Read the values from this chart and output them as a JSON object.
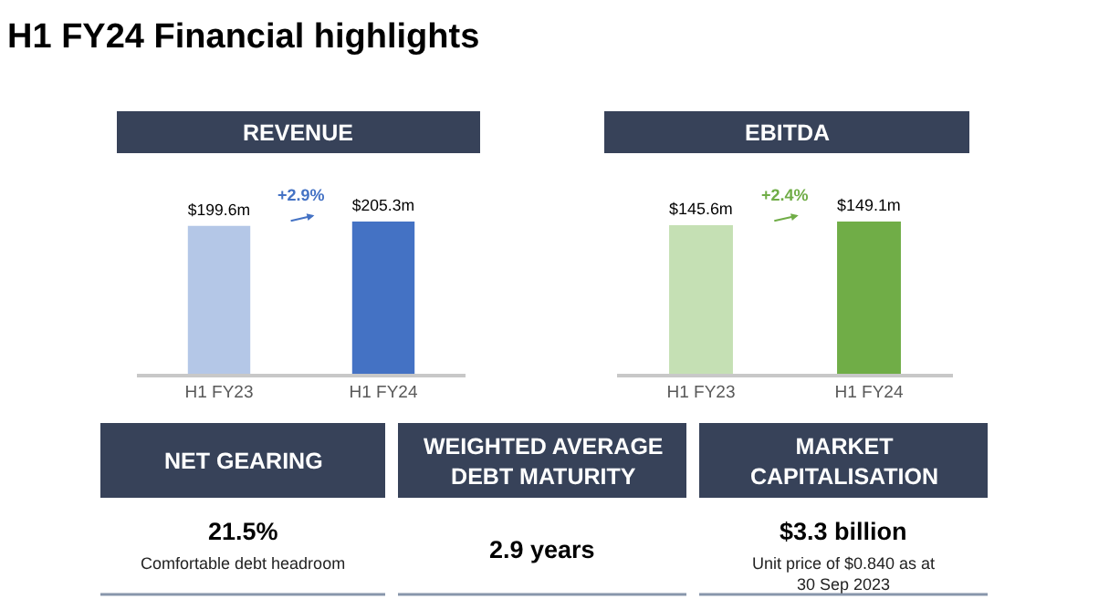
{
  "chart_data": [
    {
      "type": "other",
      "title": "H1 FY24 Financial highlights"
    },
    {
      "type": "bar",
      "title": "REVENUE",
      "categories": [
        "H1 FY23",
        "H1 FY24"
      ],
      "values": [
        199.6,
        205.3
      ],
      "colors": [
        "#b4c7e7",
        "#4472c4"
      ],
      "value_labels": [
        "$199.6m",
        "$205.3m"
      ],
      "annotations": [
        "+2.9%"
      ]
    },
    {
      "type": "bar",
      "title": "EBITDA",
      "categories": [
        "H1 FY23",
        "H1 FY24"
      ],
      "values": [
        145.6,
        149.1
      ],
      "colors": [
        "#c5e0b4",
        "#70ad47"
      ],
      "value_labels": [
        "$145.6m",
        "$149.1m"
      ],
      "annotations": [
        "+2.4%"
      ]
    },
    {
      "type": "other",
      "annotations": [
        "NET GEARING",
        "21.5%",
        "Comfortable debt headroom",
        "WEIGHTED AVERAGE\nDEBT MATURITY",
        "2.9 years",
        "MARKET\nCAPITALISATION",
        "$3.3 billion",
        "Unit price of $0.840 as at\n30 Sep 2023"
      ]
    }
  ]
}
